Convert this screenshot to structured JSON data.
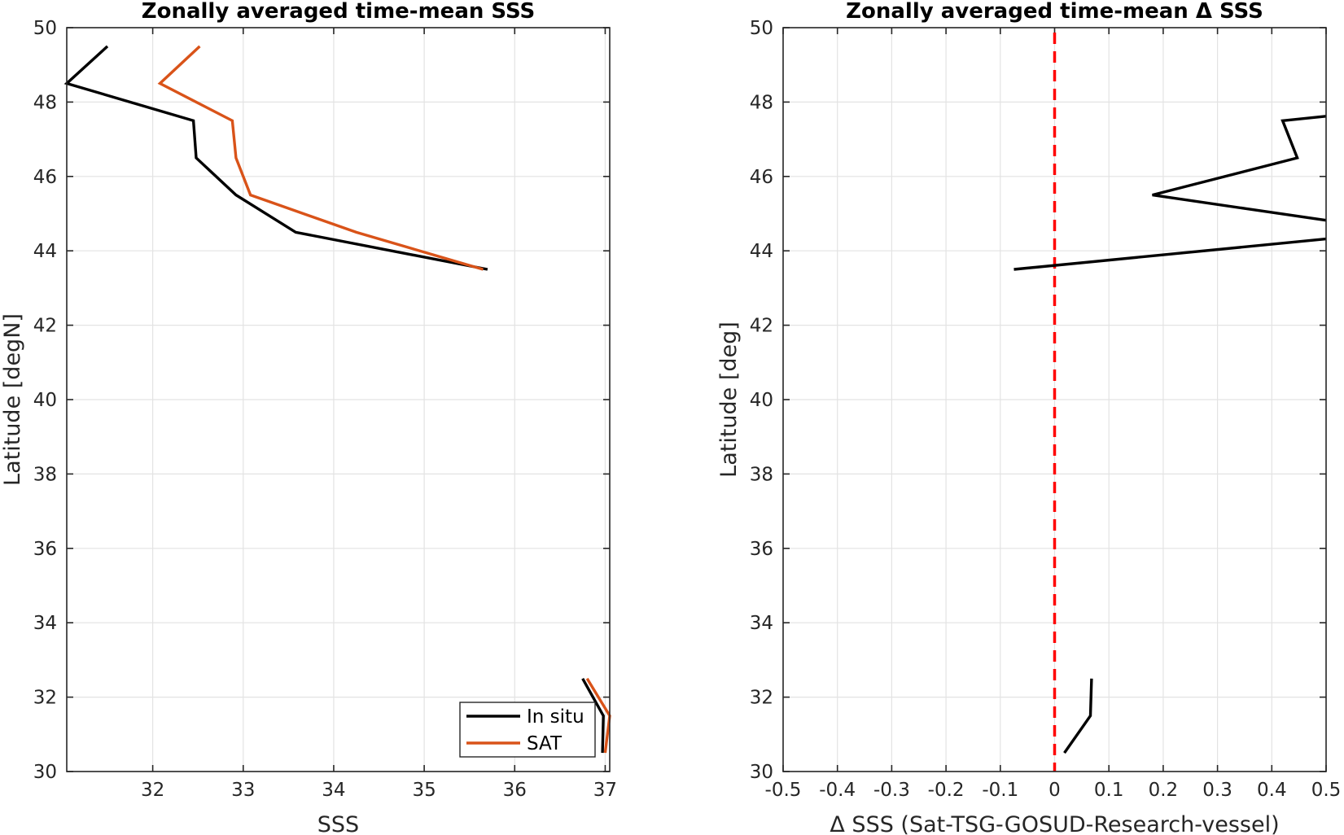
{
  "chart_data": [
    {
      "type": "line",
      "title": "Zonally averaged time-mean SSS",
      "xlabel": "SSS",
      "ylabel": "Latitude [degN]",
      "xlim": [
        31.05,
        37.05
      ],
      "ylim": [
        30,
        50
      ],
      "xticks": [
        "32",
        "33",
        "34",
        "35",
        "36",
        "37"
      ],
      "yticks": [
        "30",
        "32",
        "34",
        "36",
        "38",
        "40",
        "42",
        "44",
        "46",
        "48",
        "50"
      ],
      "grid": true,
      "legend": "bottom-right",
      "series": [
        {
          "name": "In situ",
          "color": "#000000",
          "segments": [
            [
              [
                31.5,
                49.5
              ],
              [
                31.05,
                48.5
              ],
              [
                32.45,
                47.5
              ],
              [
                32.48,
                46.5
              ],
              [
                32.92,
                45.5
              ],
              [
                33.58,
                44.5
              ],
              [
                35.7,
                43.5
              ]
            ],
            [
              [
                36.75,
                32.5
              ],
              [
                36.98,
                31.5
              ],
              [
                36.97,
                30.5
              ]
            ]
          ]
        },
        {
          "name": "SAT",
          "color": "#d95319",
          "segments": [
            [
              [
                32.52,
                49.5
              ],
              [
                32.08,
                48.5
              ],
              [
                32.88,
                47.5
              ],
              [
                32.92,
                46.5
              ],
              [
                33.08,
                45.5
              ],
              [
                34.25,
                44.5
              ],
              [
                35.65,
                43.5
              ]
            ],
            [
              [
                36.8,
                32.5
              ],
              [
                37.05,
                31.5
              ],
              [
                37.0,
                30.5
              ]
            ]
          ]
        }
      ]
    },
    {
      "type": "line",
      "title": "Zonally averaged time-mean Δ SSS",
      "xlabel": "Δ SSS (Sat-TSG-GOSUD-Research-vessel)",
      "ylabel": "Latitude [deg]",
      "xlim": [
        -0.5,
        0.5
      ],
      "ylim": [
        30,
        50
      ],
      "xticks": [
        "-0.5",
        "-0.4",
        "-0.3",
        "-0.2",
        "-0.1",
        "0",
        "0.1",
        "0.2",
        "0.3",
        "0.4",
        "0.5"
      ],
      "yticks": [
        "30",
        "32",
        "34",
        "36",
        "38",
        "40",
        "42",
        "44",
        "46",
        "48",
        "50"
      ],
      "grid": true,
      "reference_line": {
        "x": 0,
        "color": "#ff0000",
        "style": "dashed"
      },
      "series": [
        {
          "color": "#000000",
          "segments": [
            [
              [
                0.5,
                47.62
              ],
              [
                0.42,
                47.5
              ],
              [
                0.447,
                46.5
              ],
              [
                0.18,
                45.5
              ],
              [
                0.5,
                44.82
              ]
            ],
            [
              [
                0.5,
                44.32
              ],
              [
                -0.075,
                43.5
              ]
            ],
            [
              [
                0.068,
                32.5
              ],
              [
                0.066,
                31.5
              ],
              [
                0.018,
                30.5
              ]
            ]
          ]
        }
      ]
    }
  ]
}
